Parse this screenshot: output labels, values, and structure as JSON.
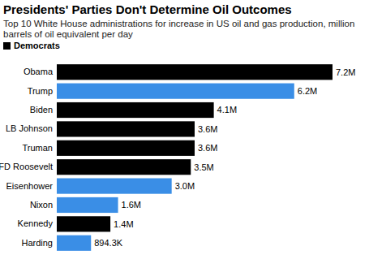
{
  "chart_data": {
    "type": "bar",
    "orientation": "horizontal",
    "title": "Presidents' Parties Don't Determine Oil Outcomes",
    "subtitle": "Top 10 White House administrations for increase in US oil and gas production, million barrels of oil equivalent per day",
    "categories": [
      "Obama",
      "Trump",
      "Biden",
      "LB Johnson",
      "Truman",
      "FD Roosevelt",
      "Eisenhower",
      "Nixon",
      "Kennedy",
      "Harding"
    ],
    "series": [
      {
        "name": "Democrats",
        "color": "#000000",
        "values": [
          7200000,
          null,
          4100000,
          3600000,
          3600000,
          3500000,
          null,
          null,
          1400000,
          null
        ],
        "value_labels": [
          "7.2M",
          null,
          "4.1M",
          "3.6M",
          "3.6M",
          "3.5M",
          null,
          null,
          "1.4M",
          null
        ]
      },
      {
        "color": "#3a8ee6",
        "values": [
          null,
          6200000,
          null,
          null,
          null,
          null,
          3000000,
          1600000,
          null,
          894300
        ],
        "value_labels": [
          null,
          "6.2M",
          null,
          null,
          null,
          null,
          "3.0M",
          "1.6M",
          null,
          "894.3K"
        ]
      }
    ],
    "data_labels": true,
    "legend": "top-left",
    "tick_labels": "y"
  }
}
